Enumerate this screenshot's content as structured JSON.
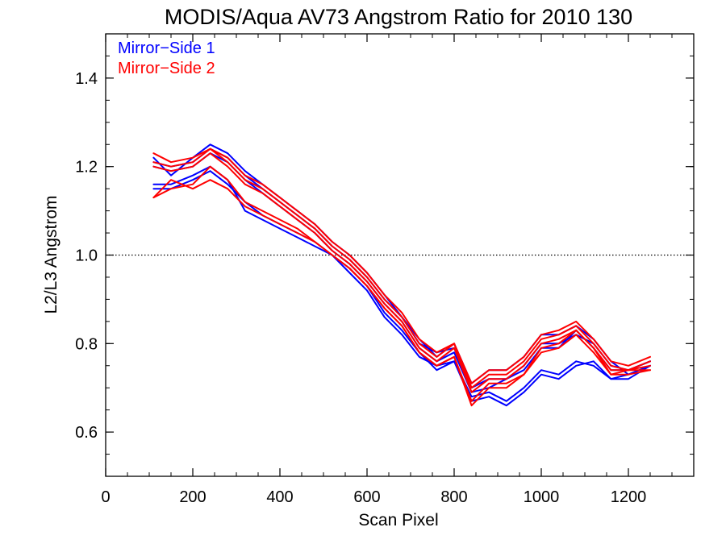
{
  "chart_data": {
    "type": "line",
    "title": "MODIS/Aqua AV73 Angstrom Ratio for 2010 130",
    "xlabel": "Scan Pixel",
    "ylabel": "L2/L3 Angstrom",
    "xlim": [
      0,
      1350
    ],
    "ylim": [
      0.5,
      1.5
    ],
    "xticks": [
      0,
      200,
      400,
      600,
      800,
      1000,
      1200
    ],
    "xtick_labels": [
      "0",
      "200",
      "400",
      "600",
      "800",
      "1000",
      "1200"
    ],
    "yticks": [
      0.6,
      0.8,
      1.0,
      1.2,
      1.4
    ],
    "ytick_labels": [
      "0.6",
      "0.8",
      "1.0",
      "1.2",
      "1.4"
    ],
    "grid": false,
    "legend_position": "top-left",
    "reference_line": {
      "y": 1.0,
      "style": "dotted"
    },
    "x": [
      110,
      150,
      200,
      240,
      280,
      320,
      360,
      400,
      440,
      480,
      520,
      560,
      600,
      640,
      680,
      720,
      760,
      800,
      840,
      880,
      920,
      960,
      1000,
      1040,
      1080,
      1120,
      1160,
      1200,
      1250
    ],
    "series": [
      {
        "name": "Mirror−Side 1",
        "color": "#0000ff",
        "values": [
          1.21,
          1.2,
          1.21,
          1.24,
          1.22,
          1.18,
          1.15,
          1.12,
          1.09,
          1.06,
          1.02,
          0.99,
          0.95,
          0.9,
          0.86,
          0.8,
          0.78,
          0.79,
          0.7,
          0.72,
          0.72,
          0.75,
          0.8,
          0.8,
          0.82,
          0.8,
          0.75,
          0.74,
          0.76
        ]
      },
      {
        "name": "",
        "color": "#0000ff",
        "values": [
          1.22,
          1.18,
          1.22,
          1.25,
          1.23,
          1.19,
          1.16,
          1.13,
          1.1,
          1.07,
          1.03,
          1.0,
          0.96,
          0.91,
          0.86,
          0.81,
          0.77,
          0.8,
          0.71,
          0.74,
          0.74,
          0.77,
          0.82,
          0.82,
          0.84,
          0.81,
          0.76,
          0.73,
          0.75
        ]
      },
      {
        "name": "",
        "color": "#0000ff",
        "values": [
          1.2,
          1.19,
          1.2,
          1.23,
          1.21,
          1.17,
          1.14,
          1.11,
          1.08,
          1.05,
          1.01,
          0.98,
          0.94,
          0.89,
          0.85,
          0.79,
          0.76,
          0.78,
          0.69,
          0.7,
          0.72,
          0.74,
          0.79,
          0.79,
          0.83,
          0.79,
          0.74,
          0.74,
          0.76
        ]
      },
      {
        "name": "",
        "color": "#0000ff",
        "values": [
          1.15,
          1.15,
          1.17,
          1.19,
          1.16,
          1.12,
          1.09,
          1.07,
          1.05,
          1.03,
          1.0,
          0.97,
          0.93,
          0.87,
          0.83,
          0.78,
          0.74,
          0.76,
          0.68,
          0.69,
          0.67,
          0.7,
          0.74,
          0.73,
          0.76,
          0.75,
          0.72,
          0.72,
          0.75
        ]
      },
      {
        "name": "",
        "color": "#0000ff",
        "values": [
          1.16,
          1.16,
          1.18,
          1.2,
          1.17,
          1.1,
          1.08,
          1.06,
          1.04,
          1.02,
          1.0,
          0.96,
          0.92,
          0.86,
          0.82,
          0.77,
          0.75,
          0.76,
          0.67,
          0.68,
          0.66,
          0.69,
          0.73,
          0.72,
          0.75,
          0.76,
          0.72,
          0.73,
          0.75
        ]
      },
      {
        "name": "Mirror−Side 2",
        "color": "#ff0000",
        "values": [
          1.21,
          1.2,
          1.21,
          1.24,
          1.21,
          1.17,
          1.15,
          1.12,
          1.09,
          1.06,
          1.02,
          0.99,
          0.95,
          0.9,
          0.86,
          0.8,
          0.77,
          0.8,
          0.7,
          0.73,
          0.73,
          0.76,
          0.81,
          0.82,
          0.84,
          0.8,
          0.75,
          0.74,
          0.76
        ]
      },
      {
        "name": "",
        "color": "#ff0000",
        "values": [
          1.23,
          1.21,
          1.22,
          1.24,
          1.22,
          1.18,
          1.16,
          1.13,
          1.1,
          1.07,
          1.03,
          1.0,
          0.96,
          0.91,
          0.87,
          0.81,
          0.78,
          0.8,
          0.71,
          0.74,
          0.74,
          0.77,
          0.82,
          0.83,
          0.85,
          0.81,
          0.76,
          0.75,
          0.77
        ]
      },
      {
        "name": "",
        "color": "#ff0000",
        "values": [
          1.2,
          1.19,
          1.2,
          1.23,
          1.2,
          1.16,
          1.14,
          1.11,
          1.08,
          1.05,
          1.01,
          0.98,
          0.94,
          0.89,
          0.85,
          0.79,
          0.76,
          0.79,
          0.69,
          0.72,
          0.72,
          0.75,
          0.8,
          0.81,
          0.83,
          0.79,
          0.74,
          0.74,
          0.75
        ]
      },
      {
        "name": "",
        "color": "#ff0000",
        "values": [
          1.13,
          1.15,
          1.16,
          1.2,
          1.17,
          1.12,
          1.1,
          1.08,
          1.06,
          1.03,
          1.0,
          0.97,
          0.93,
          0.88,
          0.84,
          0.78,
          0.75,
          0.77,
          0.66,
          0.7,
          0.7,
          0.73,
          0.78,
          0.79,
          0.82,
          0.78,
          0.73,
          0.73,
          0.74
        ]
      },
      {
        "name": "",
        "color": "#ff0000",
        "values": [
          1.13,
          1.17,
          1.15,
          1.17,
          1.15,
          1.11,
          1.09,
          1.07,
          1.05,
          1.03,
          1.0,
          0.97,
          0.93,
          0.88,
          0.84,
          0.78,
          0.75,
          0.77,
          0.67,
          0.71,
          0.71,
          0.73,
          0.79,
          0.8,
          0.83,
          0.79,
          0.73,
          0.74,
          0.74
        ]
      }
    ]
  }
}
